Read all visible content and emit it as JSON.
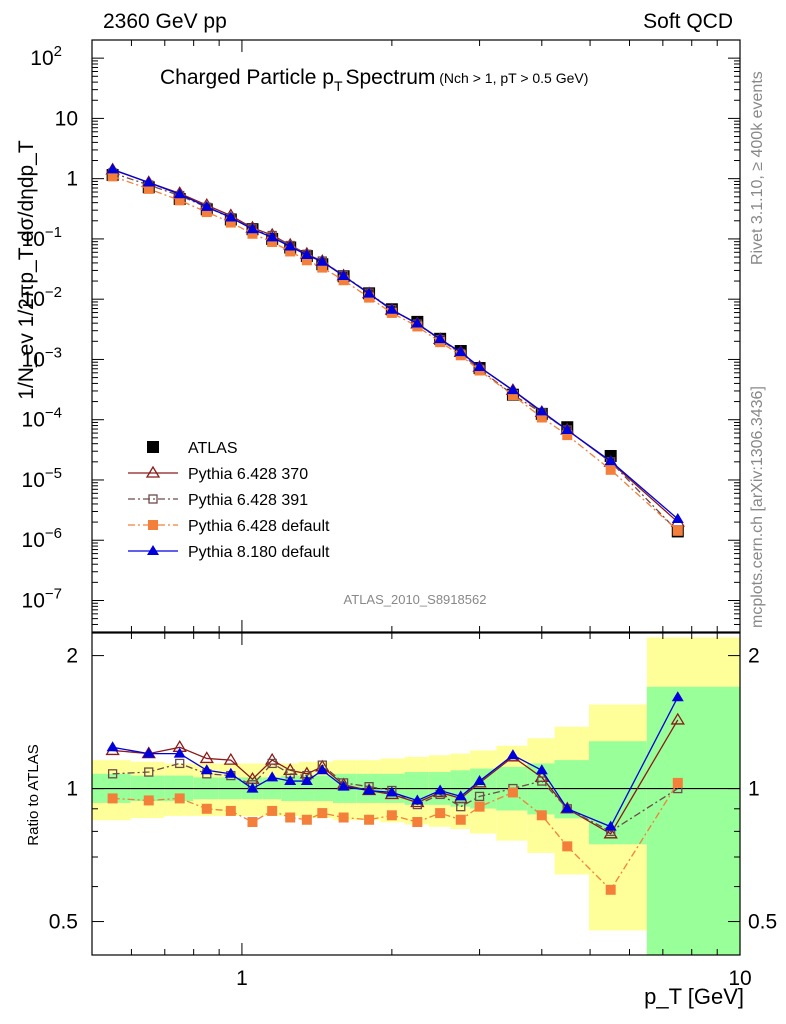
{
  "header": {
    "left": "2360 GeV pp",
    "right": "Soft QCD"
  },
  "side_text": {
    "rivet": "Rivet 3.1.10, ≥ 400k events",
    "mcplots": "mcplots.cern.ch [arXiv:1306.3436]"
  },
  "watermark": "ATLAS_2010_S8918562",
  "colors": {
    "atlas": "#000000",
    "p370": "#8b1a1a",
    "p391": "#6e4a4a",
    "pdef6": "#f47f3a",
    "p8": "#0000dd",
    "band_yellow": "#ffff99",
    "band_green": "#99ff99"
  },
  "chart_data": {
    "type": "line",
    "title": "Charged Particle p_T Spectrum",
    "subtitle": "(N_ch > 1, p_T > 0.5 GeV)",
    "xlabel": "p_T [GeV]",
    "x_scale": "log",
    "xlim": [
      0.5,
      10
    ],
    "main": {
      "ylabel": "1/N_ev 1/2πp_T dσ/dηdp_T",
      "y_scale": "log",
      "ylim": [
        3e-08,
        200
      ],
      "x_ticks": [
        {
          "value": 1,
          "label": "1"
        },
        {
          "value": 10,
          "label": "10"
        }
      ],
      "y_ticks": [
        {
          "value": 100,
          "base": "10",
          "exp": "2"
        },
        {
          "value": 10,
          "base": "10",
          "exp": ""
        },
        {
          "value": 1,
          "base": "1",
          "exp": ""
        },
        {
          "value": 0.1,
          "base": "10",
          "exp": "−1"
        },
        {
          "value": 0.01,
          "base": "10",
          "exp": "−2"
        },
        {
          "value": 0.001,
          "base": "10",
          "exp": "−3"
        },
        {
          "value": 0.0001,
          "base": "10",
          "exp": "−4"
        },
        {
          "value": 1e-05,
          "base": "10",
          "exp": "−5"
        },
        {
          "value": 1e-06,
          "base": "10",
          "exp": "−6"
        },
        {
          "value": 1e-07,
          "base": "10",
          "exp": "−7"
        }
      ]
    },
    "ratio": {
      "ylabel": "Ratio to ATLAS",
      "ylim": [
        0.42,
        2.25
      ],
      "y_scale": "log",
      "y_ticks": [
        {
          "value": 0.5,
          "label": "0.5"
        },
        {
          "value": 1,
          "label": "1"
        },
        {
          "value": 2,
          "label": "2"
        }
      ]
    },
    "x": [
      0.55,
      0.65,
      0.75,
      0.85,
      0.95,
      1.05,
      1.15,
      1.25,
      1.35,
      1.45,
      1.6,
      1.8,
      2.0,
      2.25,
      2.5,
      2.75,
      3.0,
      3.5,
      4.0,
      4.5,
      5.5,
      7.5
    ],
    "atlas": {
      "name": "ATLAS",
      "values": [
        1.15,
        0.72,
        0.46,
        0.31,
        0.21,
        0.145,
        0.1,
        0.072,
        0.052,
        0.038,
        0.024,
        0.0125,
        0.0068,
        0.0042,
        0.0022,
        0.00138,
        0.00072,
        0.00026,
        0.000125,
        7.5e-05,
        2.5e-05,
        1.4e-06
      ],
      "band_green_frac": [
        0.08,
        0.07,
        0.07,
        0.06,
        0.06,
        0.06,
        0.06,
        0.07,
        0.07,
        0.07,
        0.08,
        0.08,
        0.08,
        0.09,
        0.09,
        0.1,
        0.11,
        0.12,
        0.14,
        0.16,
        0.28,
        0.7
      ],
      "band_yellow_frac": [
        0.16,
        0.15,
        0.14,
        0.14,
        0.14,
        0.14,
        0.14,
        0.14,
        0.15,
        0.15,
        0.16,
        0.16,
        0.17,
        0.18,
        0.19,
        0.2,
        0.22,
        0.25,
        0.3,
        0.38,
        0.55,
        1.2
      ]
    },
    "series": [
      {
        "name": "Pythia 6.428 370",
        "marker": "triangle-open",
        "line": "solid",
        "color_key": "p370",
        "ratio": [
          1.22,
          1.2,
          1.24,
          1.17,
          1.16,
          1.05,
          1.16,
          1.1,
          1.08,
          1.12,
          1.02,
          0.99,
          0.97,
          0.93,
          0.98,
          0.95,
          1.03,
          1.18,
          1.06,
          0.9,
          0.79,
          1.43
        ]
      },
      {
        "name": "Pythia 6.428 391",
        "marker": "square-open",
        "line": "dashdot",
        "color_key": "p391",
        "ratio": [
          1.08,
          1.09,
          1.14,
          1.08,
          1.07,
          1.02,
          1.14,
          1.08,
          1.07,
          1.13,
          1.03,
          1.01,
          0.99,
          0.92,
          0.97,
          0.91,
          0.96,
          1.0,
          1.04,
          0.9,
          0.8,
          1.0
        ]
      },
      {
        "name": "Pythia 6.428 default",
        "marker": "square-filled",
        "line": "dashdot",
        "color_key": "pdef6",
        "ratio": [
          0.95,
          0.94,
          0.95,
          0.9,
          0.89,
          0.84,
          0.89,
          0.86,
          0.85,
          0.88,
          0.86,
          0.85,
          0.87,
          0.84,
          0.88,
          0.85,
          0.91,
          0.98,
          0.87,
          0.74,
          0.59,
          1.03
        ]
      },
      {
        "name": "Pythia 8.180 default",
        "marker": "triangle-filled",
        "line": "solid",
        "color_key": "p8",
        "ratio": [
          1.24,
          1.2,
          1.2,
          1.1,
          1.08,
          1.0,
          1.06,
          1.04,
          1.04,
          1.1,
          1.01,
          0.99,
          0.98,
          0.94,
          0.99,
          0.96,
          1.04,
          1.19,
          1.1,
          0.9,
          0.82,
          1.61
        ]
      }
    ]
  }
}
